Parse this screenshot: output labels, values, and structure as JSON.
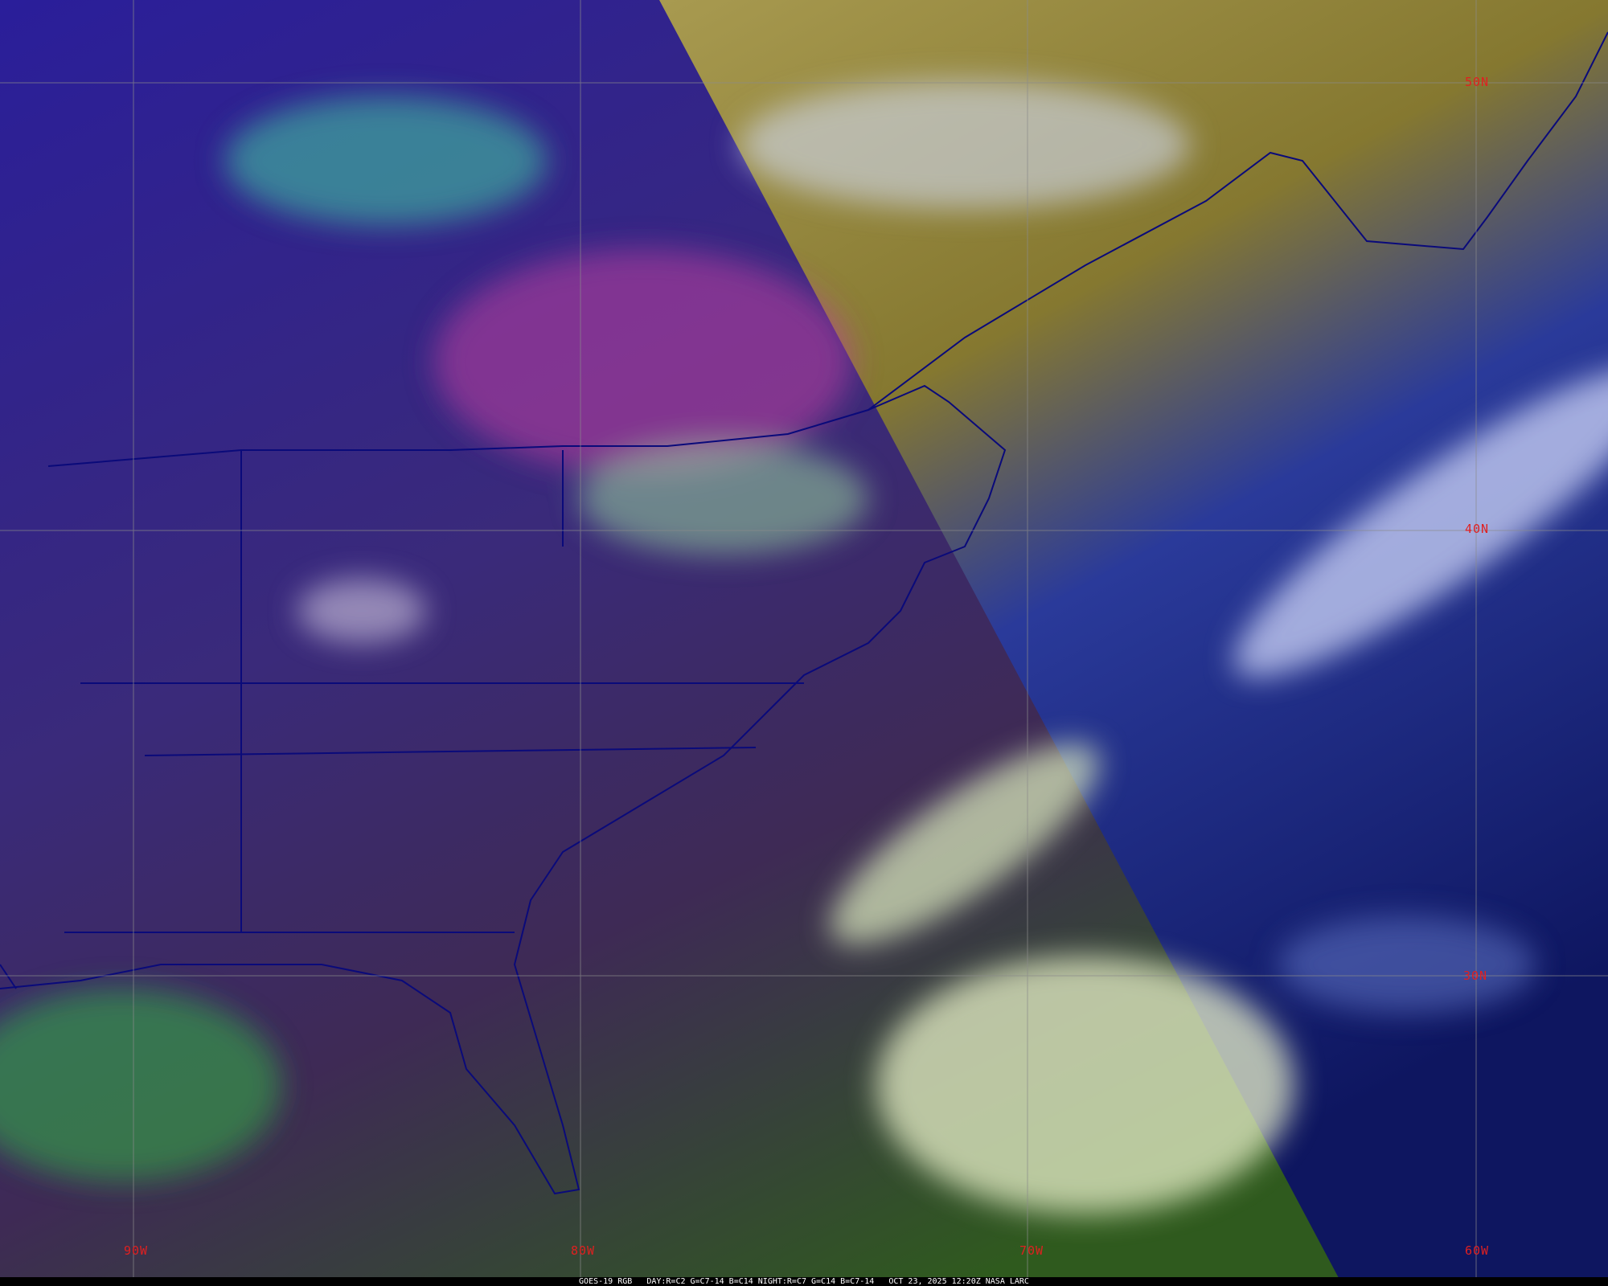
{
  "caption": "GOES-19 RGB   DAY:R=C2 G=C7-14 B=C14 NIGHT:R=C7 G=C14 B=C7-14   OCT 23, 2025 12:20Z NASA LARC",
  "latitude_labels": [
    "50N",
    "40N",
    "30N"
  ],
  "longitude_labels": [
    "90W",
    "80W",
    "70W",
    "60W"
  ],
  "colors": {
    "grid": "#8a8a8a",
    "label": "#e02020",
    "borders": "#0a0a7a",
    "night_land": "#3a2a80",
    "night_ocean": "#3a4a20",
    "day_clear": "#8a7a30",
    "day_ocean": "#1a2a80"
  }
}
